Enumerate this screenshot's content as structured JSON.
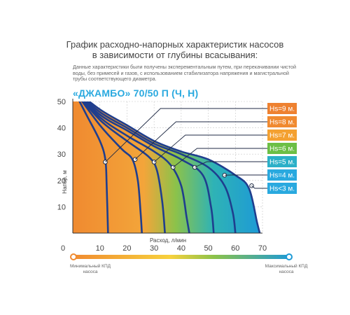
{
  "header": {
    "title_line1": "График расходно-напорных характеристик насосов",
    "title_line2": "в зависимости от глубины всасывания:"
  },
  "note_text": "Данные характеристики были получены эксперементальным путем, при перекачивании чистой воды, без примесей и газов, с использованием стабилизатора напряжения и магистральной трубы соответствующего диаметра.",
  "model_title": "«ДЖАМБО» 70/50 П (Ч, Н)",
  "chart_data": {
    "type": "line",
    "xlabel": "Расход, л/мин",
    "ylabel": "Напор, м",
    "xlim": [
      0,
      70
    ],
    "ylim": [
      0,
      50
    ],
    "x_ticks": [
      0,
      10,
      20,
      30,
      40,
      50,
      60,
      70
    ],
    "y_ticks": [
      10,
      20,
      30,
      40,
      50
    ],
    "series": [
      {
        "name": "Hs<3 м.",
        "color": "#29a9df",
        "label_bg": "#29a9df",
        "points": [
          [
            0,
            55
          ],
          [
            10,
            47
          ],
          [
            20,
            41
          ],
          [
            30,
            35
          ],
          [
            40,
            31
          ],
          [
            50,
            28
          ],
          [
            60,
            22
          ],
          [
            65,
            17
          ],
          [
            68,
            4
          ],
          [
            69,
            0
          ]
        ],
        "marker": [
          66,
          18
        ]
      },
      {
        "name": "Hs=4 м.",
        "color": "#29a9df",
        "label_bg": "#29a9df",
        "points": [
          [
            0,
            55
          ],
          [
            10,
            46
          ],
          [
            20,
            40
          ],
          [
            30,
            34
          ],
          [
            40,
            30
          ],
          [
            50,
            25
          ],
          [
            56,
            18
          ],
          [
            59,
            8
          ],
          [
            60,
            0
          ]
        ],
        "marker": [
          56,
          22
        ]
      },
      {
        "name": "Hs=5 м.",
        "color": "#2bb0c8",
        "label_bg": "#2bb0c8",
        "points": [
          [
            0,
            55
          ],
          [
            10,
            45
          ],
          [
            20,
            39
          ],
          [
            30,
            33
          ],
          [
            40,
            28
          ],
          [
            48,
            22
          ],
          [
            51,
            10
          ],
          [
            52,
            0
          ]
        ],
        "marker": [
          45,
          25
        ]
      },
      {
        "name": "Hs=6 м.",
        "color": "#6cbf45",
        "label_bg": "#6cbf45",
        "points": [
          [
            0,
            55
          ],
          [
            10,
            44
          ],
          [
            20,
            37
          ],
          [
            30,
            31
          ],
          [
            36,
            26
          ],
          [
            40,
            18
          ],
          [
            42,
            6
          ],
          [
            43,
            0
          ]
        ],
        "marker": [
          37,
          25
        ]
      },
      {
        "name": "Hs=7 м.",
        "color": "#f4a131",
        "label_bg": "#f4a131",
        "points": [
          [
            0,
            55
          ],
          [
            10,
            43
          ],
          [
            20,
            35
          ],
          [
            28,
            29
          ],
          [
            31,
            24
          ],
          [
            33,
            12
          ],
          [
            34,
            0
          ]
        ],
        "marker": [
          30,
          27
        ]
      },
      {
        "name": "Hs=8 м.",
        "color": "#f08a30",
        "label_bg": "#f08a30",
        "points": [
          [
            0,
            55
          ],
          [
            10,
            41
          ],
          [
            18,
            32
          ],
          [
            22,
            28
          ],
          [
            24,
            20
          ],
          [
            25,
            8
          ],
          [
            25.5,
            0
          ]
        ],
        "marker": [
          23,
          28
        ]
      },
      {
        "name": "Hs=9 м.",
        "color": "#ee8130",
        "label_bg": "#ee8130",
        "points": [
          [
            0,
            55
          ],
          [
            5,
            45
          ],
          [
            10,
            35
          ],
          [
            12,
            28
          ],
          [
            12.5,
            18
          ],
          [
            13,
            0
          ]
        ],
        "marker": [
          12,
          27
        ]
      }
    ]
  },
  "efficiency_scale": {
    "min_label": "Минимальный КПД насоса",
    "max_label": "Максимальный КПД насоса"
  }
}
